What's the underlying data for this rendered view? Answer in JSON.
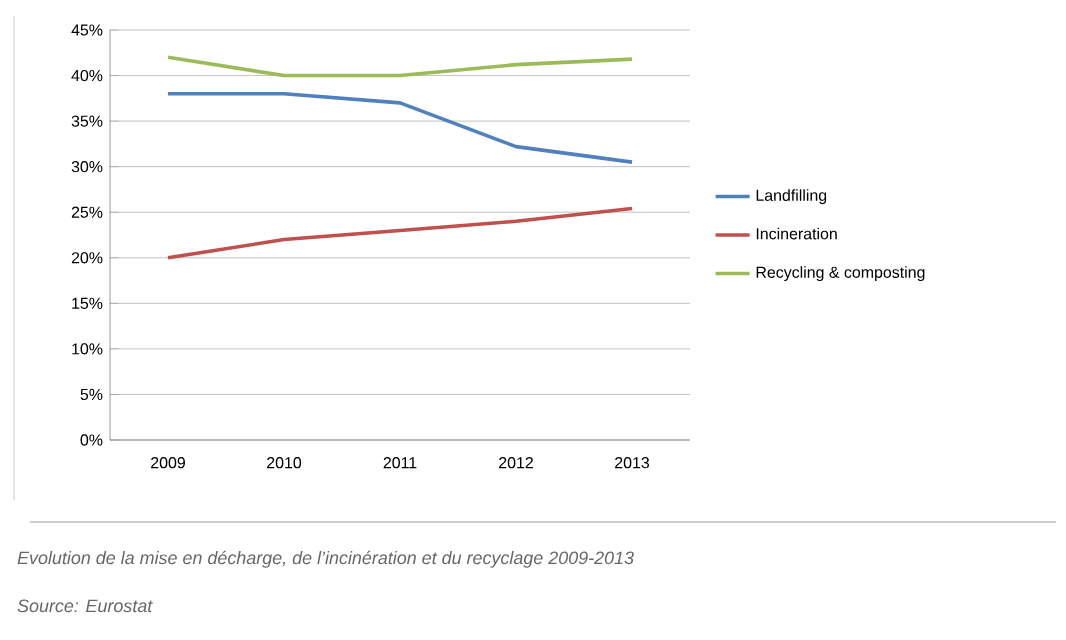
{
  "chart_data": {
    "type": "line",
    "categories": [
      "2009",
      "2010",
      "2011",
      "2012",
      "2013"
    ],
    "series": [
      {
        "name": "Landfilling",
        "color": "#4f81bd",
        "values": [
          38,
          38,
          37,
          32.2,
          30.5
        ]
      },
      {
        "name": "Incineration",
        "color": "#c0504d",
        "values": [
          20,
          22,
          23,
          24,
          25.4
        ]
      },
      {
        "name": "Recycling & composting",
        "color": "#9bbb59",
        "values": [
          42,
          40,
          40,
          41.2,
          41.8
        ]
      }
    ],
    "ylim": [
      0,
      45
    ],
    "yticks": [
      {
        "value": 0,
        "label": "0%"
      },
      {
        "value": 5,
        "label": "5%"
      },
      {
        "value": 10,
        "label": "10%"
      },
      {
        "value": 15,
        "label": "15%"
      },
      {
        "value": 20,
        "label": "20%"
      },
      {
        "value": 25,
        "label": "25%"
      },
      {
        "value": 30,
        "label": "30%"
      },
      {
        "value": 35,
        "label": "35%"
      },
      {
        "value": 40,
        "label": "40%"
      },
      {
        "value": 45,
        "label": "45%"
      }
    ],
    "grid": "y",
    "legend": "right",
    "marker": "none",
    "line_style": "solid",
    "annotations": [
      "Evolution de la mise en décharge, de l’incinération et du recyclage 2009-2013",
      "Source: Eurostat"
    ]
  }
}
